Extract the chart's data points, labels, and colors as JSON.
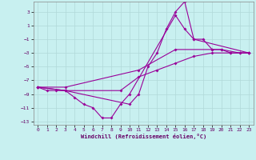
{
  "xlabel": "Windchill (Refroidissement éolien,°C)",
  "bg_color": "#c8f0f0",
  "grid_color": "#b0d8d8",
  "line_color": "#990099",
  "xlim": [
    -0.5,
    23.5
  ],
  "ylim": [
    -13.5,
    4.5
  ],
  "yticks": [
    3,
    1,
    -1,
    -3,
    -5,
    -7,
    -9,
    -11,
    -13
  ],
  "xticks": [
    0,
    1,
    2,
    3,
    4,
    5,
    6,
    7,
    8,
    9,
    10,
    11,
    12,
    13,
    14,
    15,
    16,
    17,
    18,
    19,
    20,
    21,
    22,
    23
  ],
  "curve1_x": [
    0,
    1,
    2,
    3,
    10,
    11,
    12,
    13,
    14,
    15,
    16,
    17,
    18,
    19,
    20,
    21,
    22,
    23
  ],
  "curve1_y": [
    -8,
    -8.5,
    -8.5,
    -8.5,
    -10.5,
    -9,
    -5,
    -3,
    0.5,
    3,
    4.5,
    -1,
    -1,
    -2.5,
    -2.5,
    -3,
    -3,
    -3
  ],
  "curve2_x": [
    0,
    3,
    4,
    5,
    6,
    7,
    8,
    9,
    10,
    15,
    16,
    17,
    23
  ],
  "curve2_y": [
    -8,
    -8.5,
    -9.5,
    -10.5,
    -11,
    -12.5,
    -12.5,
    -10.5,
    -9,
    2.5,
    0.5,
    -1,
    -3
  ],
  "curve3_x": [
    0,
    3,
    11,
    15,
    19,
    20,
    22,
    23
  ],
  "curve3_y": [
    -8,
    -8,
    -5.5,
    -2.5,
    -2.5,
    -2.5,
    -3,
    -3
  ],
  "curve4_x": [
    0,
    3,
    9,
    11,
    13,
    15,
    17,
    19,
    21,
    23
  ],
  "curve4_y": [
    -8,
    -8.5,
    -8.5,
    -6.5,
    -5.5,
    -4.5,
    -3.5,
    -3,
    -3,
    -3
  ]
}
